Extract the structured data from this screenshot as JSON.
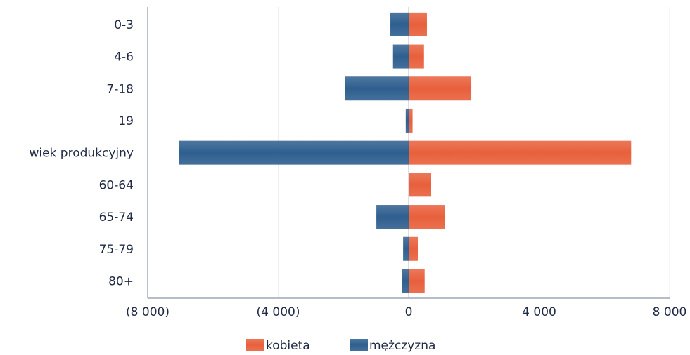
{
  "chart_data": {
    "type": "bar",
    "orientation": "horizontal",
    "layout": "population-pyramid (diverging)",
    "categories": [
      "0-3",
      "4-6",
      "7-18",
      "19",
      "wiek produkcyjny",
      "60-64",
      "65-74",
      "75-79",
      "80+"
    ],
    "series": [
      {
        "name": "kobieta",
        "color": "#e8603c",
        "values": [
          560,
          470,
          1920,
          120,
          6820,
          690,
          1120,
          280,
          490
        ]
      },
      {
        "name": "mężczyzna",
        "color": "#2f5f8f",
        "values": [
          -560,
          -480,
          -1950,
          -90,
          -7050,
          0,
          -990,
          -170,
          -200
        ]
      }
    ],
    "xlim": [
      -8000,
      8000
    ],
    "x_ticks": [
      -8000,
      -4000,
      0,
      4000,
      8000
    ],
    "x_tick_labels": [
      "(8 000)",
      "(4 000)",
      "0",
      "4 000",
      "8 000"
    ],
    "grid": true,
    "legend_position": "bottom-center",
    "title": "",
    "xlabel": "",
    "ylabel": ""
  }
}
